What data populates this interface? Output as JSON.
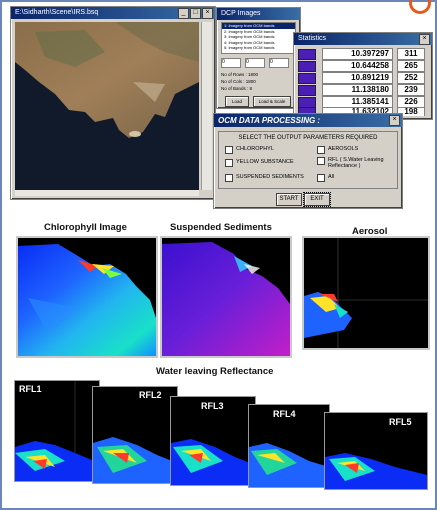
{
  "sat_window": {
    "title": "E:\\Sidharth\\Scene\\IRS.bsq"
  },
  "list_window": {
    "title": "DCP Images",
    "items": [
      "1: Imagery from OCM bands",
      "2: Imagery from OCM bands",
      "3: Imagery from OCM bands",
      "4: Imagery from OCM bands",
      "5: Imagery from OCM bands"
    ],
    "fields": [
      "0",
      "0",
      "0"
    ],
    "info": [
      "No of Rows : 1800",
      "No of Cols : 1800",
      "No of Bands : 8"
    ],
    "buttons": [
      "Load",
      "Load & Scale"
    ]
  },
  "stats_window": {
    "title": "Statistics",
    "rows": [
      {
        "value": "10.397297",
        "count": "311"
      },
      {
        "value": "10.644258",
        "count": "265"
      },
      {
        "value": "10.891219",
        "count": "252"
      },
      {
        "value": "11.138180",
        "count": "239"
      },
      {
        "value": "11.385141",
        "count": "226"
      },
      {
        "value": "11.632102",
        "count": "198"
      }
    ],
    "swatch_color": "#4b1fb5"
  },
  "ocm_dialog": {
    "title": "OCM DATA PROCESSING :",
    "group_title": "SELECT THE OUTPUT PARAMETERS REQUIRED",
    "options": {
      "chlorophyl": "CHLOROPHYL",
      "aerosols": "AEROSOLS",
      "yellow": "YELLOW SUBSTANCE",
      "rfl": "RFL ( S.Water Leaving Reflectance )",
      "sediments": "SUSPENDED SEDIMENTS",
      "all": "All"
    },
    "start_label": "START",
    "exit_label": "EXIT"
  },
  "captions": {
    "chlorophyl": "Chlorophyll Image",
    "sediments": "Suspended Sediments",
    "aerosol": "Aerosol",
    "water": "Water leaving Reflectance"
  },
  "rfl_labels": [
    "RFL1",
    "RFL2",
    "RFL3",
    "RFL4",
    "RFL5"
  ],
  "colors": {
    "frame": "#6b86b8",
    "logo": "#e85a1b",
    "titlebar": "#0a246a"
  }
}
